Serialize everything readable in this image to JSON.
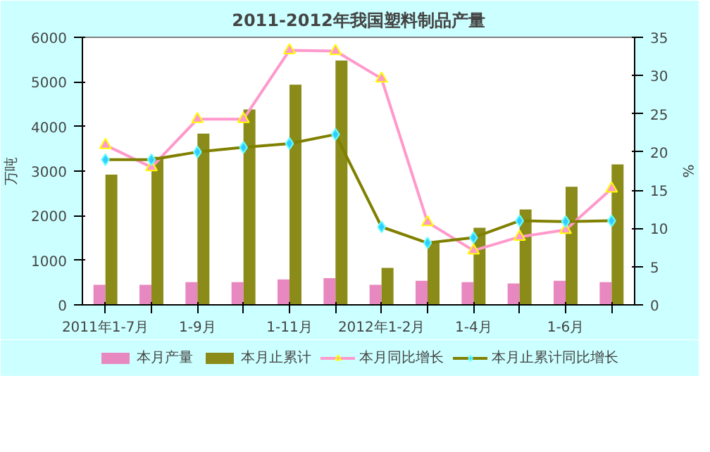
{
  "chart_data": {
    "type": "bar",
    "title": "2011-2012年我国塑料制品产量",
    "ylabel": "万吨",
    "y2label": "%",
    "categories": [
      "2011年1-7月",
      null,
      "1-9月",
      null,
      "1-11月",
      null,
      "2012年1-2月",
      null,
      "1-4月",
      null,
      "1-6月",
      null
    ],
    "series": [
      {
        "name": "本月产量",
        "color": "#e888c0",
        "values": [
          450,
          450,
          510,
          510,
          570,
          600,
          450,
          540,
          510,
          480,
          540,
          510
        ]
      },
      {
        "name": "本月止累计",
        "color": "#8b8b1a",
        "values": [
          2920,
          3320,
          3840,
          4380,
          4940,
          5480,
          830,
          1390,
          1730,
          2140,
          2650,
          3150
        ]
      },
      {
        "name": "本月同比增长",
        "type": "line",
        "axis": "y2",
        "color": "#ff99cc",
        "marker": "triangle",
        "values": [
          20.9,
          18.0,
          24.3,
          24.3,
          33.3,
          33.2,
          29.6,
          10.8,
          7.1,
          8.9,
          9.8,
          15.2
        ]
      },
      {
        "name": "本月止累计同比增长",
        "type": "line",
        "axis": "y2",
        "color": "#808000",
        "marker": "diamond",
        "values": [
          19.0,
          19.0,
          20.0,
          20.6,
          21.1,
          22.3,
          10.2,
          8.1,
          8.8,
          11.0,
          10.9,
          11.0
        ]
      }
    ],
    "ylim": [
      0,
      6000
    ],
    "yticks": [
      0,
      1000,
      2000,
      3000,
      4000,
      5000,
      6000
    ],
    "y2lim": [
      0,
      35
    ],
    "y2ticks": [
      0,
      5,
      10,
      15,
      20,
      25,
      30,
      35
    ],
    "grid": false,
    "legend": "bottom"
  }
}
